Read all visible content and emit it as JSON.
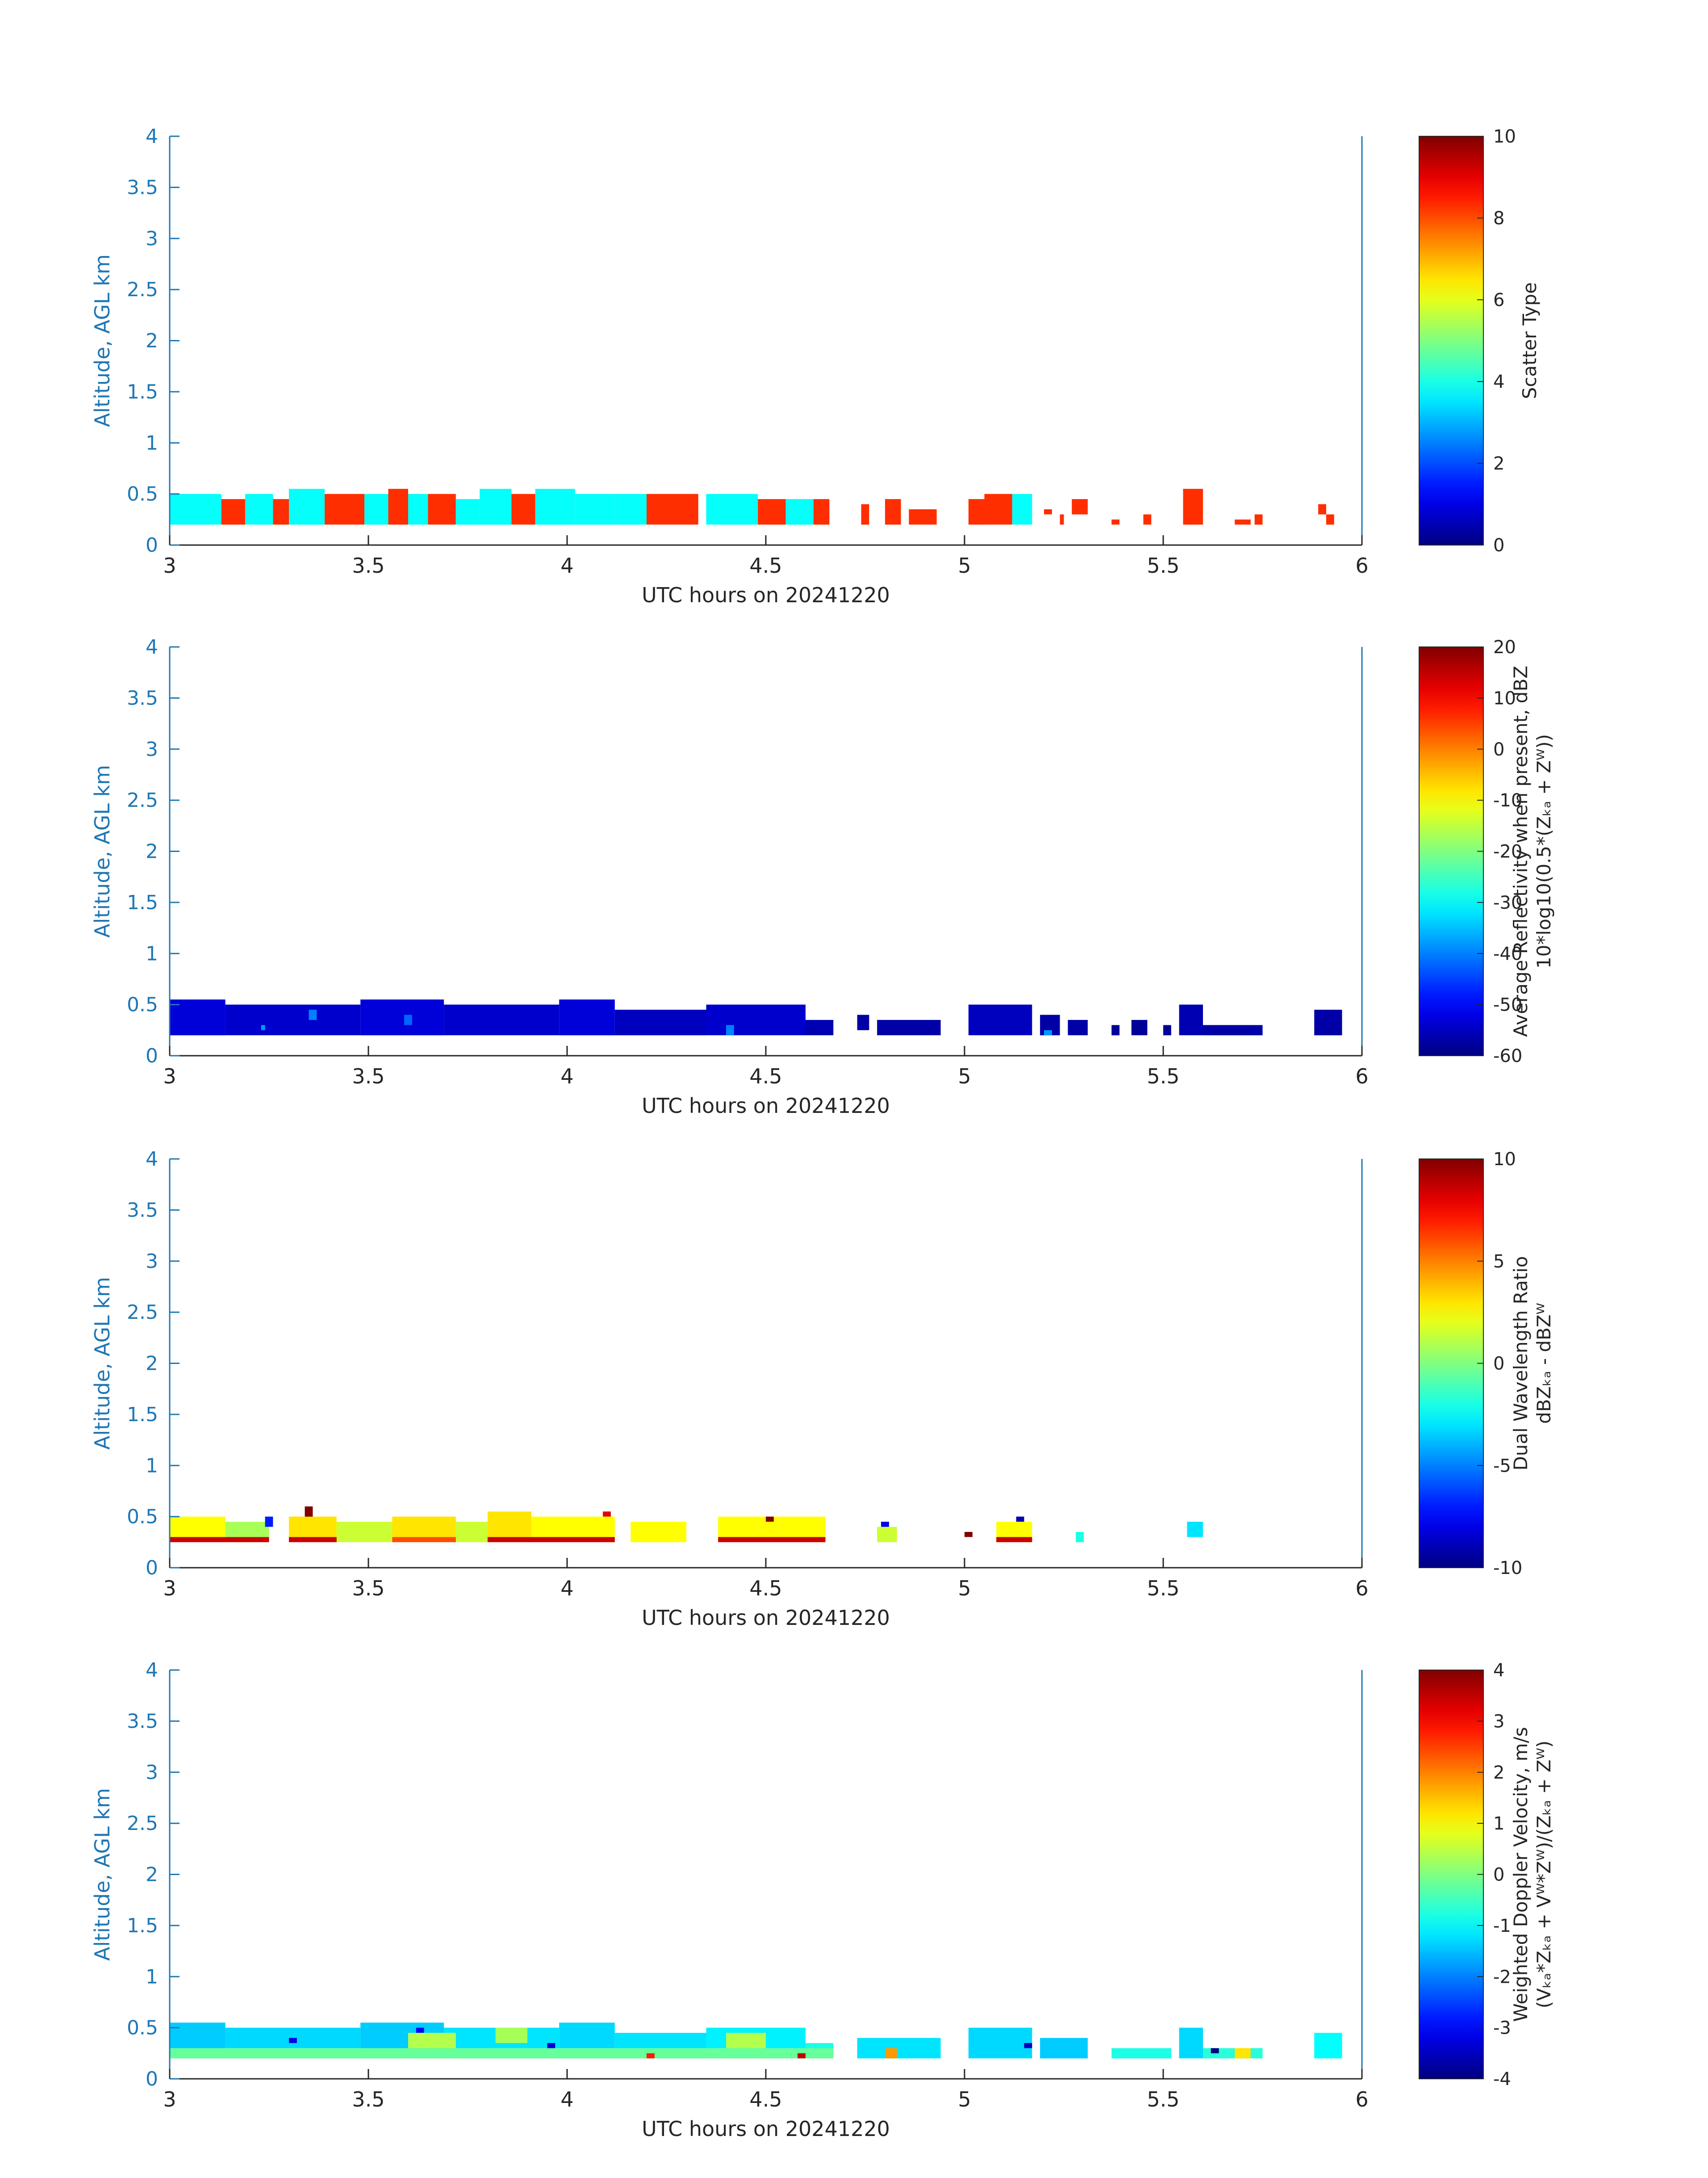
{
  "chart_data": [
    {
      "type": "heatmap",
      "xlabel": "UTC hours on 20241220",
      "ylabel": "Altitude, AGL km",
      "xlim": [
        3,
        6
      ],
      "ylim": [
        0,
        4
      ],
      "xticks": [
        "3",
        "3.5",
        "4",
        "4.5",
        "5",
        "5.5",
        "6"
      ],
      "yticks": [
        "0",
        "0.5",
        "1",
        "1.5",
        "2",
        "2.5",
        "3",
        "3.5",
        "4"
      ],
      "colorbar": {
        "label_lines": [
          "Scatter Type"
        ],
        "range": [
          0,
          10
        ],
        "ticks": [
          "0",
          "2",
          "4",
          "6",
          "8",
          "10"
        ]
      },
      "cells": [
        {
          "x0": 3.0,
          "x1": 3.13,
          "y0": 0.2,
          "y1": 0.5,
          "v": 3.8
        },
        {
          "x0": 3.13,
          "x1": 3.19,
          "y0": 0.2,
          "y1": 0.45,
          "v": 8.3
        },
        {
          "x0": 3.19,
          "x1": 3.26,
          "y0": 0.2,
          "y1": 0.5,
          "v": 3.8
        },
        {
          "x0": 3.26,
          "x1": 3.3,
          "y0": 0.2,
          "y1": 0.45,
          "v": 8.3
        },
        {
          "x0": 3.3,
          "x1": 3.39,
          "y0": 0.2,
          "y1": 0.55,
          "v": 3.8
        },
        {
          "x0": 3.39,
          "x1": 3.49,
          "y0": 0.2,
          "y1": 0.5,
          "v": 8.3
        },
        {
          "x0": 3.49,
          "x1": 3.55,
          "y0": 0.2,
          "y1": 0.5,
          "v": 3.8
        },
        {
          "x0": 3.55,
          "x1": 3.6,
          "y0": 0.2,
          "y1": 0.55,
          "v": 8.3
        },
        {
          "x0": 3.6,
          "x1": 3.65,
          "y0": 0.2,
          "y1": 0.5,
          "v": 3.8
        },
        {
          "x0": 3.65,
          "x1": 3.72,
          "y0": 0.2,
          "y1": 0.5,
          "v": 8.3
        },
        {
          "x0": 3.72,
          "x1": 3.78,
          "y0": 0.2,
          "y1": 0.45,
          "v": 3.8
        },
        {
          "x0": 3.78,
          "x1": 3.86,
          "y0": 0.2,
          "y1": 0.55,
          "v": 3.8
        },
        {
          "x0": 3.86,
          "x1": 3.92,
          "y0": 0.2,
          "y1": 0.5,
          "v": 8.3
        },
        {
          "x0": 3.92,
          "x1": 4.02,
          "y0": 0.2,
          "y1": 0.55,
          "v": 3.8
        },
        {
          "x0": 4.02,
          "x1": 4.12,
          "y0": 0.2,
          "y1": 0.5,
          "v": 3.8
        },
        {
          "x0": 4.12,
          "x1": 4.2,
          "y0": 0.2,
          "y1": 0.5,
          "v": 3.8
        },
        {
          "x0": 4.2,
          "x1": 4.33,
          "y0": 0.2,
          "y1": 0.5,
          "v": 8.3
        },
        {
          "x0": 4.35,
          "x1": 4.48,
          "y0": 0.2,
          "y1": 0.5,
          "v": 3.8
        },
        {
          "x0": 4.48,
          "x1": 4.55,
          "y0": 0.2,
          "y1": 0.45,
          "v": 8.3
        },
        {
          "x0": 4.55,
          "x1": 4.62,
          "y0": 0.2,
          "y1": 0.45,
          "v": 3.8
        },
        {
          "x0": 4.62,
          "x1": 4.66,
          "y0": 0.2,
          "y1": 0.45,
          "v": 8.3
        },
        {
          "x0": 4.74,
          "x1": 4.76,
          "y0": 0.2,
          "y1": 0.4,
          "v": 8.3
        },
        {
          "x0": 4.8,
          "x1": 4.84,
          "y0": 0.2,
          "y1": 0.45,
          "v": 8.3
        },
        {
          "x0": 4.86,
          "x1": 4.93,
          "y0": 0.2,
          "y1": 0.35,
          "v": 8.3
        },
        {
          "x0": 5.01,
          "x1": 5.05,
          "y0": 0.2,
          "y1": 0.45,
          "v": 8.3
        },
        {
          "x0": 5.05,
          "x1": 5.12,
          "y0": 0.2,
          "y1": 0.5,
          "v": 8.3
        },
        {
          "x0": 5.12,
          "x1": 5.17,
          "y0": 0.2,
          "y1": 0.5,
          "v": 3.8
        },
        {
          "x0": 5.2,
          "x1": 5.22,
          "y0": 0.3,
          "y1": 0.35,
          "v": 8.3
        },
        {
          "x0": 5.24,
          "x1": 5.25,
          "y0": 0.2,
          "y1": 0.3,
          "v": 8.3
        },
        {
          "x0": 5.27,
          "x1": 5.31,
          "y0": 0.3,
          "y1": 0.45,
          "v": 8.3
        },
        {
          "x0": 5.37,
          "x1": 5.39,
          "y0": 0.2,
          "y1": 0.25,
          "v": 8.3
        },
        {
          "x0": 5.45,
          "x1": 5.47,
          "y0": 0.2,
          "y1": 0.3,
          "v": 8.3
        },
        {
          "x0": 5.55,
          "x1": 5.6,
          "y0": 0.2,
          "y1": 0.55,
          "v": 8.3
        },
        {
          "x0": 5.68,
          "x1": 5.72,
          "y0": 0.2,
          "y1": 0.25,
          "v": 8.3
        },
        {
          "x0": 5.73,
          "x1": 5.75,
          "y0": 0.2,
          "y1": 0.3,
          "v": 8.3
        },
        {
          "x0": 5.89,
          "x1": 5.91,
          "y0": 0.3,
          "y1": 0.4,
          "v": 8.3
        },
        {
          "x0": 5.91,
          "x1": 5.93,
          "y0": 0.2,
          "y1": 0.3,
          "v": 8.3
        }
      ]
    },
    {
      "type": "heatmap",
      "xlabel": "UTC hours on 20241220",
      "ylabel": "Altitude, AGL km",
      "xlim": [
        3,
        6
      ],
      "ylim": [
        0,
        4
      ],
      "xticks": [
        "3",
        "3.5",
        "4",
        "4.5",
        "5",
        "5.5",
        "6"
      ],
      "yticks": [
        "0",
        "0.5",
        "1",
        "1.5",
        "2",
        "2.5",
        "3",
        "3.5",
        "4"
      ],
      "colorbar": {
        "label_lines": [
          "Average Reflectivity when present, dBZ",
          "10*log10(0.5*(Zₖₐ + Zᵂ))"
        ],
        "range": [
          -60,
          20
        ],
        "ticks": [
          "-60",
          "-50",
          "-40",
          "-30",
          "-20",
          "-10",
          "0",
          "10",
          "20"
        ]
      },
      "cells": [
        {
          "x0": 3.0,
          "x1": 3.14,
          "y0": 0.2,
          "y1": 0.55,
          "v": -53
        },
        {
          "x0": 3.14,
          "x1": 3.48,
          "y0": 0.2,
          "y1": 0.5,
          "v": -54
        },
        {
          "x0": 3.48,
          "x1": 3.69,
          "y0": 0.2,
          "y1": 0.55,
          "v": -53
        },
        {
          "x0": 3.69,
          "x1": 3.98,
          "y0": 0.2,
          "y1": 0.5,
          "v": -54
        },
        {
          "x0": 3.98,
          "x1": 4.12,
          "y0": 0.2,
          "y1": 0.55,
          "v": -53
        },
        {
          "x0": 4.12,
          "x1": 4.35,
          "y0": 0.2,
          "y1": 0.45,
          "v": -55
        },
        {
          "x0": 4.35,
          "x1": 4.6,
          "y0": 0.2,
          "y1": 0.5,
          "v": -54
        },
        {
          "x0": 4.6,
          "x1": 4.67,
          "y0": 0.2,
          "y1": 0.35,
          "v": -56
        },
        {
          "x0": 4.73,
          "x1": 4.76,
          "y0": 0.25,
          "y1": 0.4,
          "v": -57
        },
        {
          "x0": 4.78,
          "x1": 4.94,
          "y0": 0.2,
          "y1": 0.35,
          "v": -57
        },
        {
          "x0": 5.01,
          "x1": 5.17,
          "y0": 0.2,
          "y1": 0.5,
          "v": -55
        },
        {
          "x0": 5.19,
          "x1": 5.24,
          "y0": 0.2,
          "y1": 0.4,
          "v": -57
        },
        {
          "x0": 5.26,
          "x1": 5.31,
          "y0": 0.2,
          "y1": 0.35,
          "v": -57
        },
        {
          "x0": 5.37,
          "x1": 5.39,
          "y0": 0.2,
          "y1": 0.3,
          "v": -58
        },
        {
          "x0": 5.42,
          "x1": 5.46,
          "y0": 0.2,
          "y1": 0.35,
          "v": -58
        },
        {
          "x0": 5.5,
          "x1": 5.52,
          "y0": 0.2,
          "y1": 0.3,
          "v": -58
        },
        {
          "x0": 5.54,
          "x1": 5.6,
          "y0": 0.2,
          "y1": 0.5,
          "v": -56
        },
        {
          "x0": 5.6,
          "x1": 5.75,
          "y0": 0.2,
          "y1": 0.3,
          "v": -57
        },
        {
          "x0": 5.88,
          "x1": 5.95,
          "y0": 0.2,
          "y1": 0.45,
          "v": -57
        },
        {
          "x0": 3.23,
          "x1": 3.24,
          "y0": 0.25,
          "y1": 0.3,
          "v": -38
        },
        {
          "x0": 3.35,
          "x1": 3.37,
          "y0": 0.35,
          "y1": 0.45,
          "v": -40
        },
        {
          "x0": 3.59,
          "x1": 3.61,
          "y0": 0.3,
          "y1": 0.4,
          "v": -42
        },
        {
          "x0": 4.4,
          "x1": 4.42,
          "y0": 0.2,
          "y1": 0.3,
          "v": -40
        },
        {
          "x0": 5.2,
          "x1": 5.22,
          "y0": 0.2,
          "y1": 0.25,
          "v": -38
        }
      ]
    },
    {
      "type": "heatmap",
      "xlabel": "UTC hours on 20241220",
      "ylabel": "Altitude, AGL km",
      "xlim": [
        3,
        6
      ],
      "ylim": [
        0,
        4
      ],
      "xticks": [
        "3",
        "3.5",
        "4",
        "4.5",
        "5",
        "5.5",
        "6"
      ],
      "yticks": [
        "0",
        "0.5",
        "1",
        "1.5",
        "2",
        "2.5",
        "3",
        "3.5",
        "4"
      ],
      "colorbar": {
        "label_lines": [
          "Dual Wavelength Ratio",
          "dBZₖₐ - dBZᵂ"
        ],
        "range": [
          -10,
          10
        ],
        "ticks": [
          "-10",
          "-5",
          "0",
          "5",
          "10"
        ]
      },
      "cells": [
        {
          "x0": 3.0,
          "x1": 3.14,
          "y0": 0.25,
          "y1": 0.5,
          "v": 2.5
        },
        {
          "x0": 3.14,
          "x1": 3.25,
          "y0": 0.25,
          "y1": 0.45,
          "v": 0.8
        },
        {
          "x0": 3.3,
          "x1": 3.42,
          "y0": 0.25,
          "y1": 0.5,
          "v": 3.0
        },
        {
          "x0": 3.42,
          "x1": 3.56,
          "y0": 0.25,
          "y1": 0.45,
          "v": 1.5
        },
        {
          "x0": 3.56,
          "x1": 3.72,
          "y0": 0.25,
          "y1": 0.5,
          "v": 3.0
        },
        {
          "x0": 3.72,
          "x1": 3.8,
          "y0": 0.25,
          "y1": 0.45,
          "v": 1.5
        },
        {
          "x0": 3.8,
          "x1": 3.91,
          "y0": 0.25,
          "y1": 0.55,
          "v": 3.0
        },
        {
          "x0": 3.91,
          "x1": 4.12,
          "y0": 0.25,
          "y1": 0.5,
          "v": 2.5
        },
        {
          "x0": 4.16,
          "x1": 4.3,
          "y0": 0.25,
          "y1": 0.45,
          "v": 2.5
        },
        {
          "x0": 4.38,
          "x1": 4.65,
          "y0": 0.25,
          "y1": 0.5,
          "v": 2.5
        },
        {
          "x0": 4.78,
          "x1": 4.83,
          "y0": 0.25,
          "y1": 0.4,
          "v": 1.5
        },
        {
          "x0": 5.08,
          "x1": 5.17,
          "y0": 0.25,
          "y1": 0.45,
          "v": 2.5
        },
        {
          "x0": 5.28,
          "x1": 5.3,
          "y0": 0.25,
          "y1": 0.35,
          "v": -2
        },
        {
          "x0": 5.56,
          "x1": 5.6,
          "y0": 0.3,
          "y1": 0.45,
          "v": -3
        },
        {
          "x0": 3.0,
          "x1": 3.25,
          "y0": 0.25,
          "y1": 0.3,
          "v": 8.5
        },
        {
          "x0": 3.3,
          "x1": 3.42,
          "y0": 0.25,
          "y1": 0.3,
          "v": 8.5
        },
        {
          "x0": 3.56,
          "x1": 3.72,
          "y0": 0.25,
          "y1": 0.3,
          "v": 6.0
        },
        {
          "x0": 3.8,
          "x1": 4.12,
          "y0": 0.25,
          "y1": 0.3,
          "v": 8.5
        },
        {
          "x0": 4.38,
          "x1": 4.65,
          "y0": 0.25,
          "y1": 0.3,
          "v": 8.5
        },
        {
          "x0": 5.08,
          "x1": 5.17,
          "y0": 0.25,
          "y1": 0.3,
          "v": 8.5
        },
        {
          "x0": 3.34,
          "x1": 3.36,
          "y0": 0.5,
          "y1": 0.6,
          "v": 10
        },
        {
          "x0": 3.24,
          "x1": 3.26,
          "y0": 0.4,
          "y1": 0.5,
          "v": -7
        },
        {
          "x0": 4.09,
          "x1": 4.11,
          "y0": 0.5,
          "y1": 0.55,
          "v": 8
        },
        {
          "x0": 4.5,
          "x1": 4.52,
          "y0": 0.45,
          "y1": 0.5,
          "v": 10
        },
        {
          "x0": 4.79,
          "x1": 4.81,
          "y0": 0.4,
          "y1": 0.45,
          "v": -8
        },
        {
          "x0": 5.0,
          "x1": 5.02,
          "y0": 0.3,
          "y1": 0.35,
          "v": 10
        },
        {
          "x0": 5.13,
          "x1": 5.15,
          "y0": 0.45,
          "y1": 0.5,
          "v": -9
        }
      ]
    },
    {
      "type": "heatmap",
      "xlabel": "UTC hours on 20241220",
      "ylabel": "Altitude, AGL km",
      "xlim": [
        3,
        6
      ],
      "ylim": [
        0,
        4
      ],
      "xticks": [
        "3",
        "3.5",
        "4",
        "4.5",
        "5",
        "5.5",
        "6"
      ],
      "yticks": [
        "0",
        "0.5",
        "1",
        "1.5",
        "2",
        "2.5",
        "3",
        "3.5",
        "4"
      ],
      "colorbar": {
        "label_lines": [
          "Weighted Doppler Velocity, m/s",
          "(Vₖₐ*Zₖₐ + Vᵂ*Zᵂ)/(Zₖₐ + Zᵂ)"
        ],
        "range": [
          -4,
          4
        ],
        "ticks": [
          "-4",
          "-3",
          "-2",
          "-1",
          "0",
          "1",
          "2",
          "3",
          "4"
        ]
      },
      "cells": [
        {
          "x0": 3.0,
          "x1": 3.14,
          "y0": 0.3,
          "y1": 0.55,
          "v": -1.4
        },
        {
          "x0": 3.14,
          "x1": 3.48,
          "y0": 0.3,
          "y1": 0.5,
          "v": -1.3
        },
        {
          "x0": 3.48,
          "x1": 3.69,
          "y0": 0.3,
          "y1": 0.55,
          "v": -1.4
        },
        {
          "x0": 3.69,
          "x1": 3.98,
          "y0": 0.3,
          "y1": 0.5,
          "v": -1.2
        },
        {
          "x0": 3.98,
          "x1": 4.12,
          "y0": 0.3,
          "y1": 0.55,
          "v": -1.3
        },
        {
          "x0": 4.12,
          "x1": 4.35,
          "y0": 0.3,
          "y1": 0.45,
          "v": -1.2
        },
        {
          "x0": 4.35,
          "x1": 4.6,
          "y0": 0.3,
          "y1": 0.5,
          "v": -1.1
        },
        {
          "x0": 4.6,
          "x1": 4.67,
          "y0": 0.25,
          "y1": 0.35,
          "v": -0.8
        },
        {
          "x0": 4.73,
          "x1": 4.94,
          "y0": 0.2,
          "y1": 0.4,
          "v": -1.2
        },
        {
          "x0": 5.01,
          "x1": 5.17,
          "y0": 0.2,
          "y1": 0.5,
          "v": -1.3
        },
        {
          "x0": 5.19,
          "x1": 5.31,
          "y0": 0.2,
          "y1": 0.4,
          "v": -1.4
        },
        {
          "x0": 5.37,
          "x1": 5.52,
          "y0": 0.2,
          "y1": 0.3,
          "v": -0.8
        },
        {
          "x0": 5.54,
          "x1": 5.6,
          "y0": 0.2,
          "y1": 0.5,
          "v": -1.3
        },
        {
          "x0": 5.6,
          "x1": 5.75,
          "y0": 0.2,
          "y1": 0.3,
          "v": -0.7
        },
        {
          "x0": 5.88,
          "x1": 5.95,
          "y0": 0.2,
          "y1": 0.45,
          "v": -1.0
        },
        {
          "x0": 3.0,
          "x1": 4.67,
          "y0": 0.2,
          "y1": 0.3,
          "v": -0.2
        },
        {
          "x0": 3.6,
          "x1": 3.72,
          "y0": 0.3,
          "y1": 0.45,
          "v": 0.4
        },
        {
          "x0": 3.82,
          "x1": 3.9,
          "y0": 0.35,
          "y1": 0.5,
          "v": 0.3
        },
        {
          "x0": 4.4,
          "x1": 4.5,
          "y0": 0.3,
          "y1": 0.45,
          "v": 0.4
        },
        {
          "x0": 4.8,
          "x1": 4.83,
          "y0": 0.2,
          "y1": 0.3,
          "v": 1.8
        },
        {
          "x0": 5.68,
          "x1": 5.72,
          "y0": 0.2,
          "y1": 0.3,
          "v": 1.2
        },
        {
          "x0": 3.3,
          "x1": 3.32,
          "y0": 0.35,
          "y1": 0.4,
          "v": -3.2
        },
        {
          "x0": 3.62,
          "x1": 3.64,
          "y0": 0.45,
          "y1": 0.5,
          "v": -3
        },
        {
          "x0": 3.95,
          "x1": 3.97,
          "y0": 0.3,
          "y1": 0.35,
          "v": -3.3
        },
        {
          "x0": 5.15,
          "x1": 5.17,
          "y0": 0.3,
          "y1": 0.35,
          "v": -3.5
        },
        {
          "x0": 5.62,
          "x1": 5.64,
          "y0": 0.25,
          "y1": 0.3,
          "v": -4
        },
        {
          "x0": 4.2,
          "x1": 4.22,
          "y0": 0.2,
          "y1": 0.25,
          "v": 2.8
        },
        {
          "x0": 4.58,
          "x1": 4.6,
          "y0": 0.2,
          "y1": 0.25,
          "v": 3.5
        }
      ]
    }
  ]
}
